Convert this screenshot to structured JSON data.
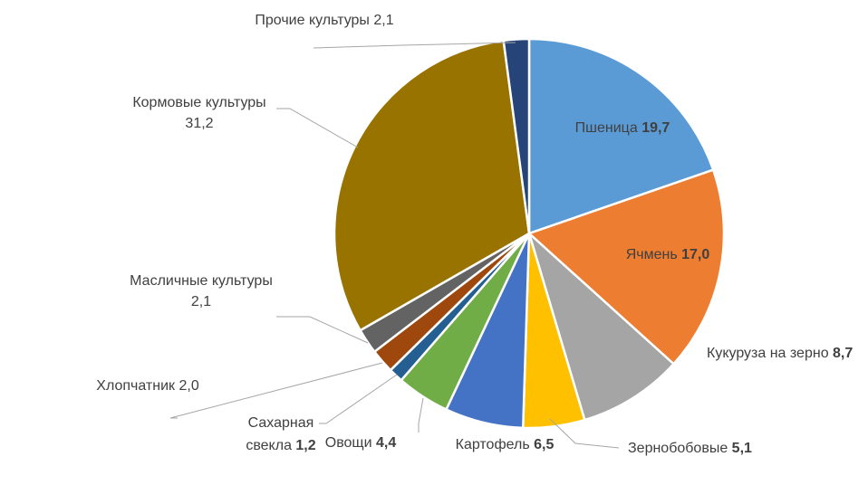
{
  "chart_data": {
    "type": "pie",
    "slices": [
      {
        "name": "Пшеница",
        "value": 19.7,
        "value_text": "19,7",
        "color": "#5B9BD5",
        "bold_value": true,
        "label_layout": "inside"
      },
      {
        "name": "Ячмень",
        "value": 17.0,
        "value_text": "17,0",
        "color": "#ED7D31",
        "bold_value": true,
        "label_layout": "inside"
      },
      {
        "name": "Кукуруза на зерно",
        "value": 8.7,
        "value_text": "8,7",
        "color": "#A5A5A5",
        "bold_value": true,
        "label_layout": "outside"
      },
      {
        "name": "Зернобобовые",
        "value": 5.1,
        "value_text": "5,1",
        "color": "#FFC000",
        "bold_value": true,
        "label_layout": "outside"
      },
      {
        "name": "Картофель",
        "value": 6.5,
        "value_text": "6,5",
        "color": "#4472C4",
        "bold_value": true,
        "label_layout": "outside"
      },
      {
        "name": "Овощи",
        "value": 4.4,
        "value_text": "4,4",
        "color": "#70AD47",
        "bold_value": true,
        "label_layout": "outside"
      },
      {
        "name": "Сахарная свекла",
        "line1": "Сахарная",
        "line2": "свекла",
        "value": 1.2,
        "value_text": "1,2",
        "color": "#255E91",
        "bold_value": true,
        "label_layout": "outside"
      },
      {
        "name": "Хлопчатник",
        "value": 2.0,
        "value_text": "2,0",
        "color": "#9E480E",
        "bold_value": false,
        "label_layout": "outside"
      },
      {
        "name": "Масличные культуры",
        "value": 2.1,
        "value_text": "2,1",
        "color": "#636363",
        "bold_value": false,
        "label_layout": "outside"
      },
      {
        "name": "Кормовые культуры",
        "value": 31.2,
        "value_text": "31,2",
        "color": "#997300",
        "bold_value": false,
        "label_layout": "outside"
      },
      {
        "name": "Прочие культуры",
        "value": 2.1,
        "value_text": "2,1",
        "color": "#264478",
        "bold_value": false,
        "label_layout": "outside"
      }
    ]
  }
}
